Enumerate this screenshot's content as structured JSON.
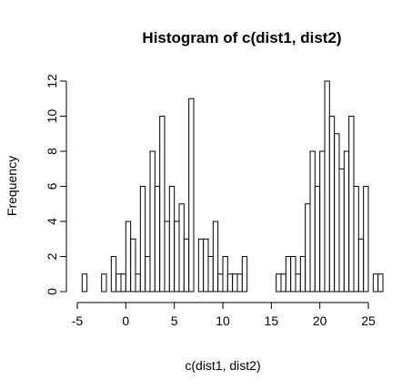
{
  "chart_data": {
    "type": "bar",
    "title": "Histogram of c(dist1, dist2)",
    "xlabel": "c(dist1, dist2)",
    "ylabel": "Frequency",
    "bin_start": -4.5,
    "bin_width": 0.5,
    "xlim": [
      -5,
      25
    ],
    "ylim": [
      0,
      12
    ],
    "x_ticks": [
      "-5",
      "0",
      "5",
      "10",
      "15",
      "20",
      "25"
    ],
    "y_ticks": [
      "0",
      "2",
      "4",
      "6",
      "8",
      "10",
      "12"
    ],
    "values": [
      1,
      0,
      0,
      0,
      1,
      0,
      2,
      1,
      1,
      4,
      3,
      1,
      6,
      2,
      8,
      6,
      10,
      4,
      6,
      4,
      5,
      3,
      11,
      0,
      3,
      3,
      2,
      4,
      1,
      2,
      1,
      1,
      1,
      2,
      0,
      0,
      0,
      0,
      0,
      0,
      1,
      1,
      2,
      2,
      1,
      2,
      5,
      8,
      6,
      8,
      12,
      10,
      9,
      7,
      8,
      10,
      6,
      3,
      6,
      0,
      1,
      1
    ],
    "grid": false,
    "legend": "none"
  }
}
